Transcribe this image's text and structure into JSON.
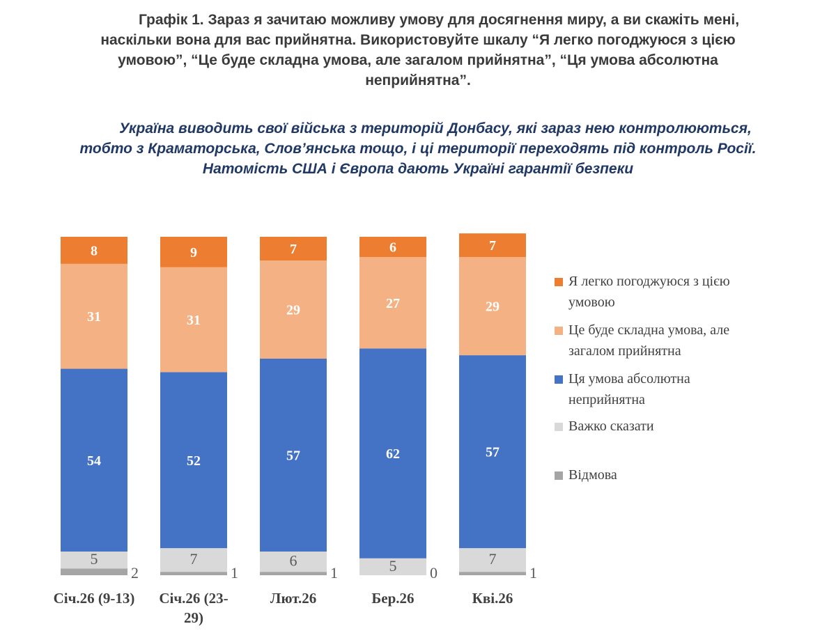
{
  "chart_data": {
    "type": "bar",
    "stacked": true,
    "title_lines": [
      "Графік 1. Зараз я зачитаю можливу умову для досягнення миру, а ви скажіть мені,",
      "наскільки вона для вас прийнятна. Використовуйте шкалу “Я легко погоджуюся з цією",
      "умовою”, “Це буде складна умова, але загалом прийнятна”, “Ця умова абсолютна",
      "неприйнятна”."
    ],
    "subtitle_lines": [
      "Україна виводить свої війська з територій Донбасу, які зараз нею контролюються,",
      "тобто з Краматорська, Слов’янська тощо, і ці території переходять під контроль Росії.",
      "Натомість США і Європа дають Україні гарантії безпеки"
    ],
    "categories": [
      [
        "Січ.26 (9-13)"
      ],
      [
        "Січ.26 (23-",
        "29)"
      ],
      [
        "Лют.26"
      ],
      [
        "Бер.26"
      ],
      [
        "Кві.26"
      ]
    ],
    "ylim": [
      0,
      100
    ],
    "grid": false,
    "legend_position": "right",
    "series": [
      {
        "name": "Відмова",
        "legend_lines": [
          "Відмова"
        ],
        "color": "#A5A5A5",
        "label_color": "#595959",
        "values": [
          2,
          1,
          1,
          0,
          1
        ]
      },
      {
        "name": "Важко сказати",
        "legend_lines": [
          "Важко сказати"
        ],
        "color": "#D9D9D9",
        "label_color": "#595959",
        "values": [
          5,
          7,
          6,
          5,
          7
        ]
      },
      {
        "name": "Ця умова абсолютна неприйнятна",
        "legend_lines": [
          "Ця умова абсолютна",
          "неприйнятна"
        ],
        "color": "#4472C4",
        "label_color": "#ffffff",
        "values": [
          54,
          52,
          57,
          62,
          57
        ]
      },
      {
        "name": "Це буде складна умова, але загалом прийнятна",
        "legend_lines": [
          "Це буде складна умова, але",
          "загалом прийнятна"
        ],
        "color": "#F4B183",
        "label_color": "#ffffff",
        "values": [
          31,
          31,
          29,
          27,
          29
        ]
      },
      {
        "name": "Я легко погоджуюся з цією умовою",
        "legend_lines": [
          "Я легко погоджуюся з цією",
          "умовою"
        ],
        "color": "#ED7D31",
        "label_color": "#ffffff",
        "values": [
          8,
          9,
          7,
          6,
          7
        ]
      }
    ]
  }
}
